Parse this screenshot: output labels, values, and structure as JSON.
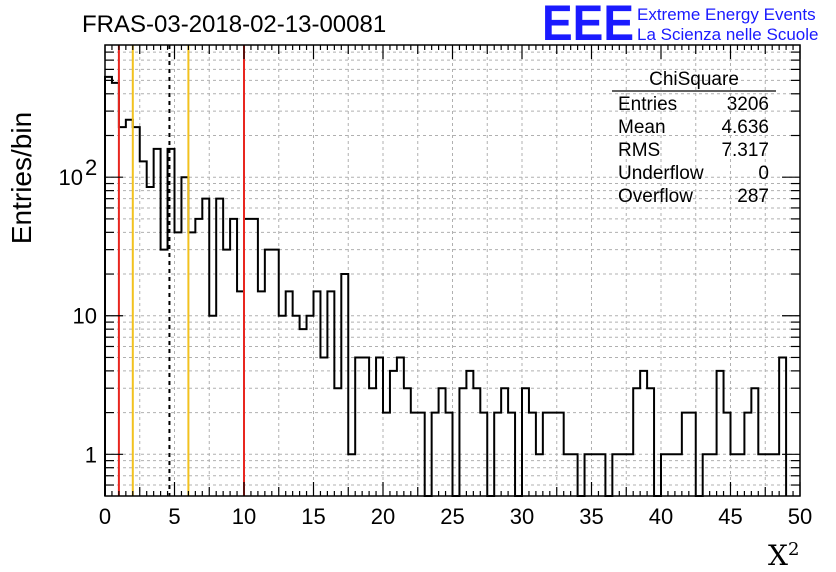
{
  "chart_data": {
    "type": "histogram",
    "title": "FRAS-03-2018-02-13-00081",
    "xlabel": "X",
    "xlabel_sup": "2",
    "ylabel": "Entries/bin",
    "xlim": [
      0,
      50
    ],
    "ylim": [
      0.5,
      900
    ],
    "yscale": "log",
    "grid": true,
    "bin_width": 0.5,
    "x_ticks": [
      "0",
      "5",
      "10",
      "15",
      "20",
      "25",
      "30",
      "35",
      "40",
      "45",
      "50"
    ],
    "y_ticks": [
      {
        "value": 1,
        "label": "1",
        "sup": ""
      },
      {
        "value": 10,
        "label": "10",
        "sup": ""
      },
      {
        "value": 100,
        "label": "10",
        "sup": "2"
      }
    ],
    "values": [
      530,
      480,
      230,
      260,
      230,
      130,
      85,
      160,
      30,
      160,
      40,
      100,
      40,
      50,
      70,
      10,
      70,
      30,
      50,
      15,
      50,
      50,
      15,
      30,
      30,
      10,
      15,
      10,
      8,
      10,
      15,
      5,
      15,
      3,
      20,
      1,
      5,
      5,
      3,
      5,
      2,
      4,
      5,
      3,
      2,
      2,
      0,
      2,
      3,
      2,
      0,
      3,
      4,
      3,
      2,
      0,
      2,
      3,
      2,
      0,
      3,
      2,
      1,
      2,
      2,
      2,
      1,
      1,
      0,
      1,
      1,
      1,
      0,
      1,
      1,
      1,
      3,
      4,
      3,
      0,
      1,
      1,
      1,
      2,
      2,
      0,
      1,
      1,
      4,
      2,
      1,
      1,
      2,
      3,
      1,
      1,
      1,
      5
    ],
    "overflow_edge_value": 5,
    "vertical_lines": [
      {
        "x": 1,
        "color": "#e8261f",
        "style": "solid"
      },
      {
        "x": 2,
        "color": "#f2c21f",
        "style": "solid"
      },
      {
        "x": 4.636,
        "color": "#000000",
        "style": "dashed"
      },
      {
        "x": 6,
        "color": "#f2c21f",
        "style": "solid"
      },
      {
        "x": 10,
        "color": "#e8261f",
        "style": "solid"
      }
    ]
  },
  "stats_box": {
    "title": "ChiSquare",
    "rows": [
      {
        "label": "Entries",
        "value": "3206"
      },
      {
        "label": "Mean",
        "value": "4.636"
      },
      {
        "label": "RMS",
        "value": "7.317"
      },
      {
        "label": "Underflow",
        "value": "0"
      },
      {
        "label": "Overflow",
        "value": "287"
      }
    ]
  },
  "logo": {
    "text": "EEE",
    "line1": "Extreme Energy Events",
    "line2": "La Scienza nelle Scuole",
    "color": "#1a1aff"
  }
}
